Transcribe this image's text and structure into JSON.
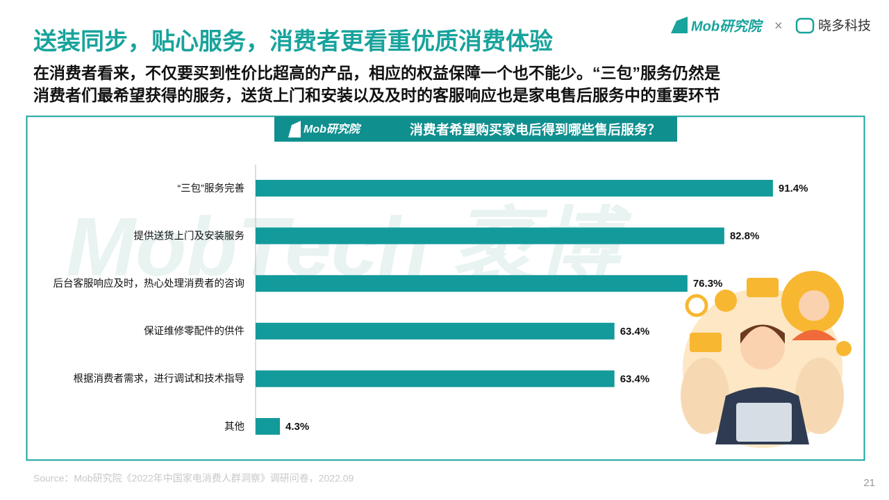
{
  "header": {
    "title": "送装同步，贴心服务，消费者更看重优质消费体验",
    "subtitle_lines": [
      "在消费者看来，不仅要买到性价比超高的产品，相应的权益保障一个也不能少。“三包”服务仍然是",
      "消费者们最希望获得的服务，送货上门和安装以及及时的客服响应也是家电售后服务中的重要环节"
    ],
    "logo_mob": "Mob研究院",
    "logo_separator": "×",
    "logo_partner": "晓多科技"
  },
  "chart_data": {
    "type": "bar",
    "orientation": "horizontal",
    "title": "消费者希望购买家电后得到哪些售后服务？",
    "banner_logo": "Mob研究院",
    "categories": [
      "“三包”服务完善",
      "提供送货上门及安装服务",
      "后台客服响应及时，热心处理消费者的咨询",
      "保证维修零配件的供件",
      "根据消费者需求，进行调试和技术指导",
      "其他"
    ],
    "values": [
      91.4,
      82.8,
      76.3,
      63.4,
      63.4,
      4.3
    ],
    "value_labels": [
      "91.4%",
      "82.8%",
      "76.3%",
      "63.4%",
      "63.4%",
      "4.3%"
    ],
    "xlim": [
      0,
      100
    ],
    "color": "#139a9b"
  },
  "footer": {
    "source": "Source：Mob研究院《2022年中国家电消费人群洞察》调研问卷，2022.09",
    "page": "21"
  }
}
